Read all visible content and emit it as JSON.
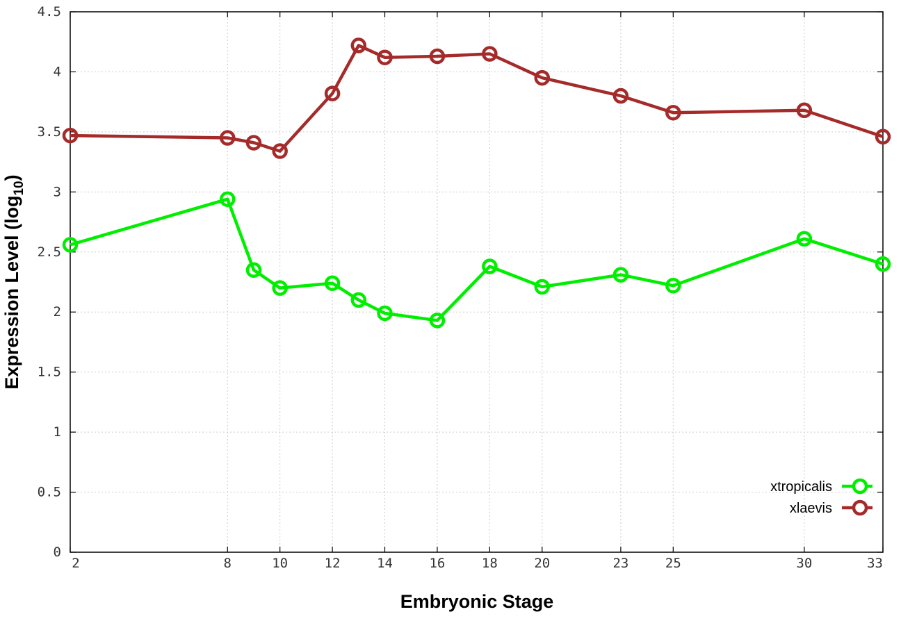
{
  "chart_data": {
    "type": "line",
    "xlabel": "Embryonic Stage",
    "ylabel": "Expression Level (log",
    "ylabel_sub": "10",
    "ylabel_close": ")",
    "xlim": [
      2,
      33
    ],
    "ylim": [
      0,
      4.5
    ],
    "x_ticks": [
      2,
      8,
      10,
      12,
      14,
      16,
      18,
      20,
      23,
      25,
      30,
      33
    ],
    "y_ticks": [
      0,
      0.5,
      1,
      1.5,
      2,
      2.5,
      3,
      3.5,
      4,
      4.5
    ],
    "y_tick_labels": [
      "0",
      "0.5",
      "1",
      "1.5",
      "2",
      "2.5",
      "3",
      "3.5",
      "4",
      "4.5"
    ],
    "grid": true,
    "legend_position": "bottom-right",
    "x": [
      2,
      8,
      9,
      10,
      12,
      13,
      14,
      16,
      18,
      20,
      23,
      25,
      30,
      33
    ],
    "series": [
      {
        "name": "xtropicalis",
        "color": "#00ee00",
        "values": [
          2.56,
          2.94,
          2.35,
          2.2,
          2.24,
          2.1,
          1.99,
          1.93,
          2.38,
          2.21,
          2.31,
          2.22,
          2.61,
          2.4
        ]
      },
      {
        "name": "xlaevis",
        "color": "#a52a2a",
        "values": [
          3.47,
          3.45,
          3.41,
          3.34,
          3.82,
          4.22,
          4.12,
          4.13,
          4.15,
          3.95,
          3.8,
          3.66,
          3.68,
          3.46
        ]
      }
    ]
  }
}
